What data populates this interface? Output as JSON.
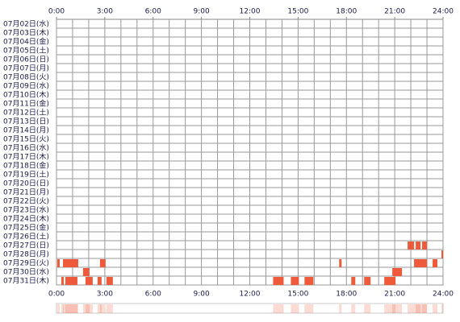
{
  "chart_data": {
    "type": "timeline",
    "categories": [
      "07月02日(水)",
      "07月03日(木)",
      "07月04日(金)",
      "07月05日(土)",
      "07月06日(日)",
      "07月07日(月)",
      "07月08日(火)",
      "07月09日(水)",
      "07月10日(木)",
      "07月11日(金)",
      "07月12日(土)",
      "07月13日(日)",
      "07月14日(月)",
      "07月15日(火)",
      "07月16日(水)",
      "07月17日(木)",
      "07月18日(金)",
      "07月19日(土)",
      "07月20日(日)",
      "07月21日(月)",
      "07月22日(火)",
      "07月23日(水)",
      "07月24日(木)",
      "07月25日(金)",
      "07月26日(土)",
      "07月27日(日)",
      "07月28日(月)",
      "07月29日(火)",
      "07月30日(水)",
      "07月31日(木)"
    ],
    "segments": [
      [],
      [],
      [],
      [],
      [],
      [],
      [],
      [],
      [],
      [],
      [],
      [],
      [],
      [],
      [],
      [],
      [],
      [],
      [],
      [],
      [],
      [],
      [],
      [],
      [],
      [
        [
          21.8,
          22.2
        ],
        [
          22.3,
          22.6
        ],
        [
          22.7,
          23.0
        ]
      ],
      [
        [
          23.9,
          24.0
        ]
      ],
      [
        [
          0.05,
          0.2
        ],
        [
          0.4,
          1.35
        ],
        [
          2.7,
          3.05
        ],
        [
          17.55,
          17.7
        ],
        [
          22.2,
          23.0
        ],
        [
          23.35,
          23.65
        ]
      ],
      [
        [
          1.65,
          2.05
        ],
        [
          20.85,
          21.45
        ]
      ],
      [
        [
          0.3,
          0.45
        ],
        [
          0.55,
          1.3
        ],
        [
          1.8,
          2.25
        ],
        [
          2.55,
          2.8
        ],
        [
          3.1,
          3.5
        ],
        [
          13.45,
          14.1
        ],
        [
          14.55,
          15.05
        ],
        [
          15.4,
          15.95
        ],
        [
          18.3,
          18.55
        ],
        [
          19.1,
          19.5
        ],
        [
          20.35,
          21.05
        ]
      ]
    ],
    "color": "#ef5a3a",
    "xlim": [
      0,
      24
    ],
    "xticks": [
      {
        "value": 0,
        "label": "0:00"
      },
      {
        "value": 3,
        "label": "3:00"
      },
      {
        "value": 6,
        "label": "6:00"
      },
      {
        "value": 9,
        "label": "9:00"
      },
      {
        "value": 12,
        "label": "12:00"
      },
      {
        "value": 15,
        "label": "15:00"
      },
      {
        "value": 18,
        "label": "18:00"
      },
      {
        "value": 21,
        "label": "21:00"
      },
      {
        "value": 24,
        "label": "24:00"
      }
    ],
    "grid": true
  }
}
